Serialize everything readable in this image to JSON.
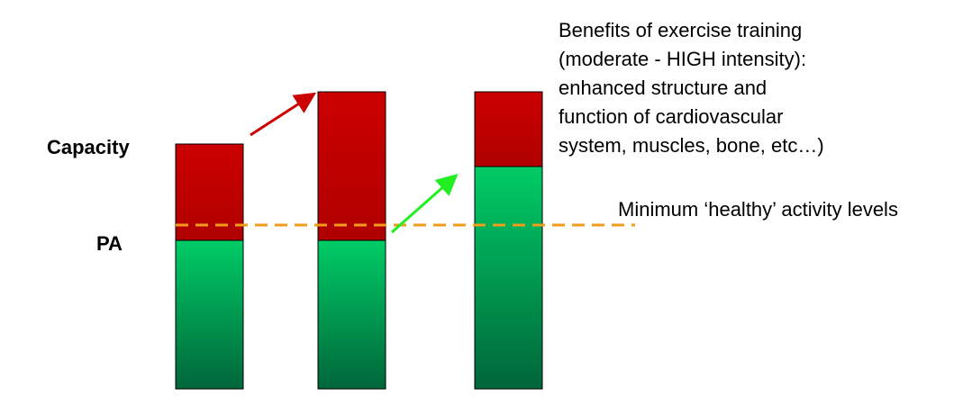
{
  "labels": {
    "capacity": "Capacity",
    "pa": "PA"
  },
  "annotation": {
    "lines": [
      "Benefits of exercise training",
      "(moderate - HIGH intensity):",
      "enhanced structure and",
      "function of cardiovascular",
      "system, muscles, bone, etc…)"
    ]
  },
  "threshold_label": "Minimum ‘healthy’ activity levels"
}
